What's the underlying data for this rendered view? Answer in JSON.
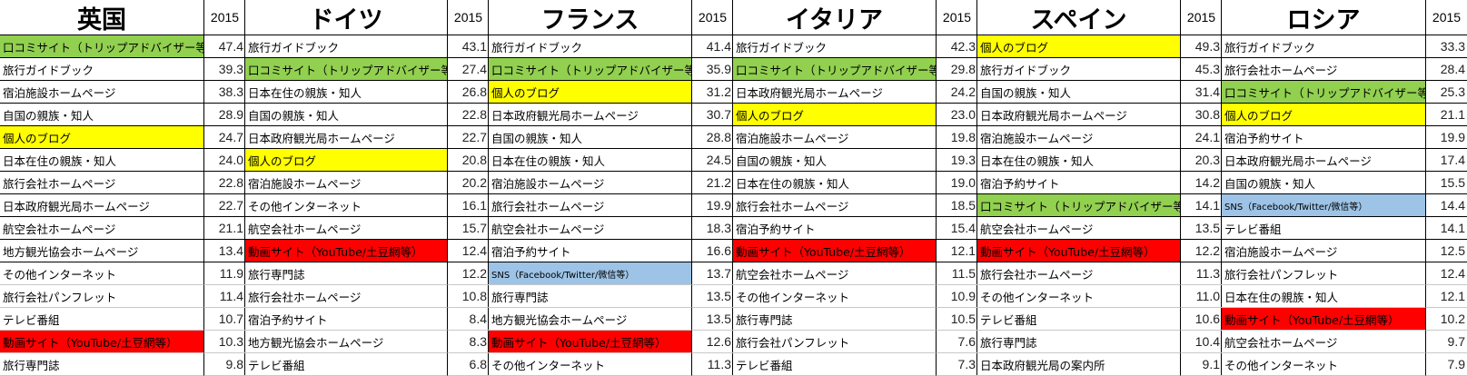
{
  "year_label": "2015",
  "colors": {
    "green": "#92d050",
    "yellow": "#ffff00",
    "red": "#ff0000",
    "blue": "#9dc3e6"
  },
  "countries": [
    {
      "name": "英国",
      "rows": [
        {
          "label": "口コミサイト（トリップアドバイザー等）",
          "value": "47.4",
          "highlight": "green"
        },
        {
          "label": "旅行ガイドブック",
          "value": "39.3"
        },
        {
          "label": "宿泊施設ホームページ",
          "value": "38.3"
        },
        {
          "label": "自国の親族・知人",
          "value": "28.9"
        },
        {
          "label": "個人のブログ",
          "value": "24.7",
          "highlight": "yellow"
        },
        {
          "label": "日本在住の親族・知人",
          "value": "24.0"
        },
        {
          "label": "旅行会社ホームページ",
          "value": "22.8"
        },
        {
          "label": "日本政府観光局ホームページ",
          "value": "22.7"
        },
        {
          "label": "航空会社ホームページ",
          "value": "21.1"
        },
        {
          "label": "地方観光協会ホームページ",
          "value": "13.4"
        },
        {
          "label": "その他インターネット",
          "value": "11.9"
        },
        {
          "label": "旅行会社パンフレット",
          "value": "11.4"
        },
        {
          "label": "テレビ番組",
          "value": "10.7"
        },
        {
          "label": "動画サイト（YouTube/土豆網等）",
          "value": "10.3",
          "highlight": "red"
        },
        {
          "label": "旅行専門誌",
          "value": "9.8"
        }
      ]
    },
    {
      "name": "ドイツ",
      "rows": [
        {
          "label": "旅行ガイドブック",
          "value": "43.1"
        },
        {
          "label": "口コミサイト（トリップアドバイザー等）",
          "value": "27.4",
          "highlight": "green"
        },
        {
          "label": "日本在住の親族・知人",
          "value": "26.8"
        },
        {
          "label": "自国の親族・知人",
          "value": "22.8"
        },
        {
          "label": "日本政府観光局ホームページ",
          "value": "22.7"
        },
        {
          "label": "個人のブログ",
          "value": "20.8",
          "highlight": "yellow"
        },
        {
          "label": "宿泊施設ホームページ",
          "value": "20.2"
        },
        {
          "label": "その他インターネット",
          "value": "16.1"
        },
        {
          "label": "航空会社ホームページ",
          "value": "15.7"
        },
        {
          "label": "動画サイト（YouTube/土豆網等）",
          "value": "12.4",
          "highlight": "red"
        },
        {
          "label": "旅行専門誌",
          "value": "12.2"
        },
        {
          "label": "旅行会社ホームページ",
          "value": "10.8"
        },
        {
          "label": "宿泊予約サイト",
          "value": "8.4"
        },
        {
          "label": "地方観光協会ホームページ",
          "value": "8.3"
        },
        {
          "label": "テレビ番組",
          "value": "6.8"
        }
      ]
    },
    {
      "name": "フランス",
      "rows": [
        {
          "label": "旅行ガイドブック",
          "value": "41.4"
        },
        {
          "label": "口コミサイト（トリップアドバイザー等）",
          "value": "35.9",
          "highlight": "green"
        },
        {
          "label": "個人のブログ",
          "value": "31.2",
          "highlight": "yellow"
        },
        {
          "label": "日本政府観光局ホームページ",
          "value": "30.7"
        },
        {
          "label": "自国の親族・知人",
          "value": "28.8"
        },
        {
          "label": "日本在住の親族・知人",
          "value": "24.5"
        },
        {
          "label": "宿泊施設ホームページ",
          "value": "21.2"
        },
        {
          "label": "旅行会社ホームページ",
          "value": "19.9"
        },
        {
          "label": "航空会社ホームページ",
          "value": "18.3"
        },
        {
          "label": "宿泊予約サイト",
          "value": "16.6"
        },
        {
          "label": "SNS（Facebook/Twitter/微信等）",
          "value": "13.7",
          "highlight": "blue"
        },
        {
          "label": "旅行専門誌",
          "value": "13.5"
        },
        {
          "label": "地方観光協会ホームページ",
          "value": "13.5"
        },
        {
          "label": "動画サイト（YouTube/土豆網等）",
          "value": "12.6",
          "highlight": "red"
        },
        {
          "label": "その他インターネット",
          "value": "11.3"
        }
      ]
    },
    {
      "name": "イタリア",
      "rows": [
        {
          "label": "旅行ガイドブック",
          "value": "42.3"
        },
        {
          "label": "口コミサイト（トリップアドバイザー等）",
          "value": "29.8",
          "highlight": "green"
        },
        {
          "label": "日本政府観光局ホームページ",
          "value": "24.2"
        },
        {
          "label": "個人のブログ",
          "value": "23.0",
          "highlight": "yellow"
        },
        {
          "label": "宿泊施設ホームページ",
          "value": "19.8"
        },
        {
          "label": "自国の親族・知人",
          "value": "19.3"
        },
        {
          "label": "日本在住の親族・知人",
          "value": "19.0"
        },
        {
          "label": "旅行会社ホームページ",
          "value": "18.5"
        },
        {
          "label": "宿泊予約サイト",
          "value": "15.4"
        },
        {
          "label": "動画サイト（YouTube/土豆網等）",
          "value": "12.1",
          "highlight": "red"
        },
        {
          "label": "航空会社ホームページ",
          "value": "11.5"
        },
        {
          "label": "その他インターネット",
          "value": "10.9"
        },
        {
          "label": "旅行専門誌",
          "value": "10.5"
        },
        {
          "label": "旅行会社パンフレット",
          "value": "7.6"
        },
        {
          "label": "テレビ番組",
          "value": "7.3"
        }
      ]
    },
    {
      "name": "スペイン",
      "rows": [
        {
          "label": "個人のブログ",
          "value": "49.3",
          "highlight": "yellow"
        },
        {
          "label": "旅行ガイドブック",
          "value": "45.3"
        },
        {
          "label": "自国の親族・知人",
          "value": "31.4"
        },
        {
          "label": "日本政府観光局ホームページ",
          "value": "30.8"
        },
        {
          "label": "宿泊施設ホームページ",
          "value": "24.1"
        },
        {
          "label": "日本在住の親族・知人",
          "value": "20.3"
        },
        {
          "label": "宿泊予約サイト",
          "value": "14.2"
        },
        {
          "label": "口コミサイト（トリップアドバイザー等）",
          "value": "14.1",
          "highlight": "green"
        },
        {
          "label": "航空会社ホームページ",
          "value": "13.5"
        },
        {
          "label": "動画サイト（YouTube/土豆網等）",
          "value": "12.2",
          "highlight": "red"
        },
        {
          "label": "旅行会社ホームページ",
          "value": "11.3"
        },
        {
          "label": "その他インターネット",
          "value": "11.0"
        },
        {
          "label": "テレビ番組",
          "value": "10.6"
        },
        {
          "label": "旅行専門誌",
          "value": "10.4"
        },
        {
          "label": "日本政府観光局の案内所",
          "value": "9.1"
        }
      ]
    },
    {
      "name": "ロシア",
      "rows": [
        {
          "label": "旅行ガイドブック",
          "value": "33.3"
        },
        {
          "label": "旅行会社ホームページ",
          "value": "28.4"
        },
        {
          "label": "口コミサイト（トリップアドバイザー等）",
          "value": "25.3",
          "highlight": "green"
        },
        {
          "label": "個人のブログ",
          "value": "21.1",
          "highlight": "yellow"
        },
        {
          "label": "宿泊予約サイト",
          "value": "19.9"
        },
        {
          "label": "日本政府観光局ホームページ",
          "value": "17.4"
        },
        {
          "label": "自国の親族・知人",
          "value": "15.5"
        },
        {
          "label": "SNS（Facebook/Twitter/微信等）",
          "value": "14.4",
          "highlight": "blue"
        },
        {
          "label": "テレビ番組",
          "value": "14.1"
        },
        {
          "label": "宿泊施設ホームページ",
          "value": "12.5"
        },
        {
          "label": "旅行会社パンフレット",
          "value": "12.4"
        },
        {
          "label": "日本在住の親族・知人",
          "value": "12.1"
        },
        {
          "label": "動画サイト（YouTube/土豆網等）",
          "value": "10.2",
          "highlight": "red"
        },
        {
          "label": "航空会社ホームページ",
          "value": "9.7"
        },
        {
          "label": "その他インターネット",
          "value": "7.9"
        }
      ]
    }
  ]
}
